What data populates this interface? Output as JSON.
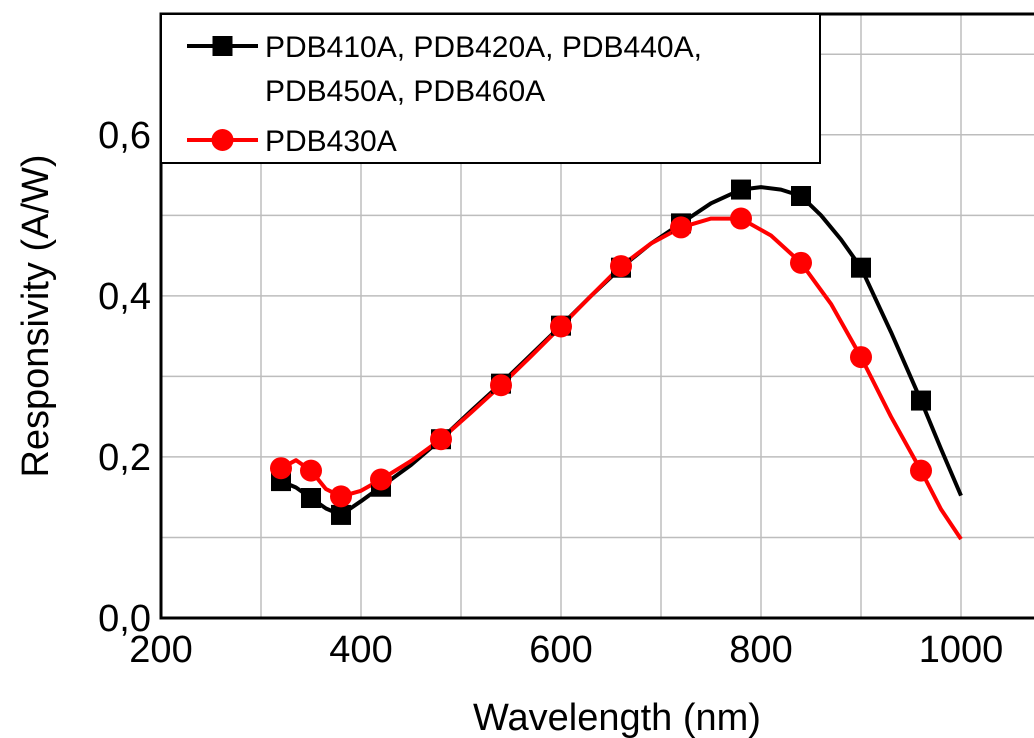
{
  "chart_data": {
    "type": "line",
    "title": "",
    "xlabel": "Wavelength (nm)",
    "ylabel": "Responsivity (A/W)",
    "xlim": [
      200,
      1080
    ],
    "ylim": [
      0,
      0.75
    ],
    "xticks": [
      200,
      400,
      600,
      800,
      1000
    ],
    "xtick_labels": [
      "200",
      "400",
      "600",
      "800",
      "1000"
    ],
    "yticks": [
      0,
      0.2,
      0.4,
      0.6
    ],
    "ytick_labels": [
      "0,0",
      "0,2",
      "0,4",
      "0,6"
    ],
    "grid": true,
    "legend_position": "top-left",
    "series": [
      {
        "name": "PDB410A, PDB420A, PDB440A, PDB450A, PDB460A",
        "legend_lines": [
          "PDB410A, PDB420A, PDB440A,",
          "PDB450A, PDB460A"
        ],
        "color": "#000000",
        "marker": "square",
        "x": [
          320,
          350,
          380,
          420,
          480,
          540,
          600,
          660,
          720,
          780,
          840,
          900,
          960
        ],
        "y": [
          0.17,
          0.149,
          0.128,
          0.163,
          0.222,
          0.291,
          0.363,
          0.435,
          0.49,
          0.532,
          0.524,
          0.435,
          0.27
        ],
        "curve": [
          [
            320,
            0.17
          ],
          [
            335,
            0.162
          ],
          [
            350,
            0.149
          ],
          [
            365,
            0.136
          ],
          [
            380,
            0.128
          ],
          [
            400,
            0.145
          ],
          [
            420,
            0.163
          ],
          [
            450,
            0.19
          ],
          [
            480,
            0.222
          ],
          [
            510,
            0.257
          ],
          [
            540,
            0.291
          ],
          [
            570,
            0.327
          ],
          [
            600,
            0.363
          ],
          [
            630,
            0.4
          ],
          [
            660,
            0.435
          ],
          [
            690,
            0.465
          ],
          [
            720,
            0.49
          ],
          [
            750,
            0.515
          ],
          [
            780,
            0.532
          ],
          [
            800,
            0.535
          ],
          [
            820,
            0.532
          ],
          [
            840,
            0.524
          ],
          [
            860,
            0.5
          ],
          [
            880,
            0.47
          ],
          [
            900,
            0.435
          ],
          [
            930,
            0.355
          ],
          [
            960,
            0.27
          ],
          [
            980,
            0.21
          ],
          [
            1000,
            0.152
          ]
        ]
      },
      {
        "name": "PDB430A",
        "legend_lines": [
          "PDB430A"
        ],
        "color": "#ff0000",
        "marker": "circle",
        "x": [
          320,
          350,
          380,
          420,
          480,
          540,
          600,
          660,
          720,
          780,
          840,
          900,
          960
        ],
        "y": [
          0.186,
          0.183,
          0.151,
          0.172,
          0.222,
          0.289,
          0.362,
          0.437,
          0.485,
          0.496,
          0.441,
          0.324,
          0.183
        ],
        "curve": [
          [
            320,
            0.186
          ],
          [
            335,
            0.196
          ],
          [
            350,
            0.183
          ],
          [
            365,
            0.16
          ],
          [
            380,
            0.151
          ],
          [
            400,
            0.158
          ],
          [
            420,
            0.172
          ],
          [
            450,
            0.195
          ],
          [
            480,
            0.222
          ],
          [
            510,
            0.255
          ],
          [
            540,
            0.289
          ],
          [
            570,
            0.325
          ],
          [
            600,
            0.362
          ],
          [
            630,
            0.4
          ],
          [
            660,
            0.437
          ],
          [
            690,
            0.465
          ],
          [
            720,
            0.485
          ],
          [
            750,
            0.496
          ],
          [
            780,
            0.496
          ],
          [
            810,
            0.475
          ],
          [
            840,
            0.441
          ],
          [
            870,
            0.39
          ],
          [
            900,
            0.324
          ],
          [
            930,
            0.25
          ],
          [
            960,
            0.183
          ],
          [
            980,
            0.135
          ],
          [
            1000,
            0.098
          ]
        ]
      }
    ]
  }
}
